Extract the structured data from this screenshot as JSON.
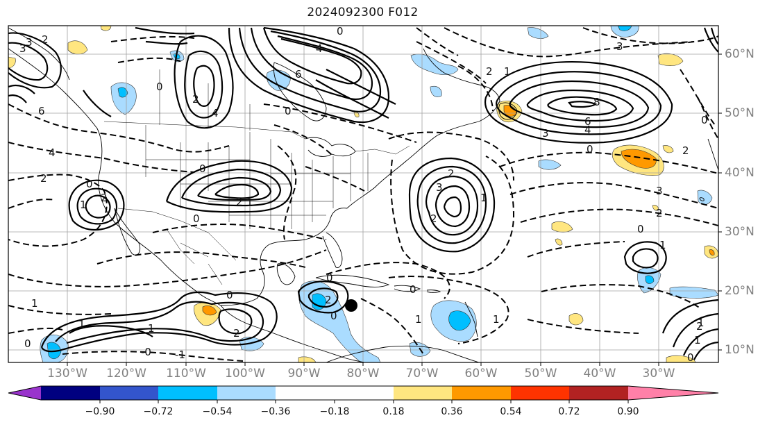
{
  "title": "2024092300 F012",
  "lon_labels": [
    "130°W",
    "120°W",
    "110°W",
    "100°W",
    "90°W",
    "80°W",
    "70°W",
    "60°W",
    "50°W",
    "40°W",
    "30°W"
  ],
  "lat_labels": [
    "60°N",
    "50°N",
    "40°N",
    "30°N",
    "20°N",
    "10°N"
  ],
  "colorbar": {
    "ticks": [
      "−0.90",
      "−0.72",
      "−0.54",
      "−0.36",
      "−0.18",
      "0.18",
      "0.36",
      "0.54",
      "0.72",
      "0.90"
    ],
    "colors": [
      "#9933cc",
      "#000080",
      "#3355cc",
      "#00bfff",
      "#aadcff",
      "#ffffff",
      "#ffe680",
      "#ff9900",
      "#ff3300",
      "#b22222",
      "#ff80a8"
    ]
  },
  "marker": {
    "name": "storm-center-dot",
    "lon": -80.6,
    "lat": 17.5
  },
  "contour_labels": [
    "2",
    "3",
    "3",
    "6",
    "4",
    "2",
    "0",
    "6",
    "4",
    "4",
    "2",
    "0",
    "0",
    "1",
    "2",
    "2",
    "0",
    "1",
    "0",
    "-1",
    "-0",
    "1",
    "2",
    "1",
    "0",
    "1",
    "0",
    "2",
    "3",
    "2",
    "1",
    "0",
    "2",
    "0",
    "1",
    "0",
    "1",
    "6",
    "4",
    "8",
    "3",
    "0",
    "2",
    "3",
    "2",
    "0",
    "1",
    "0",
    "1",
    "1",
    "2",
    "0",
    "3",
    "2",
    "1",
    "0"
  ]
}
